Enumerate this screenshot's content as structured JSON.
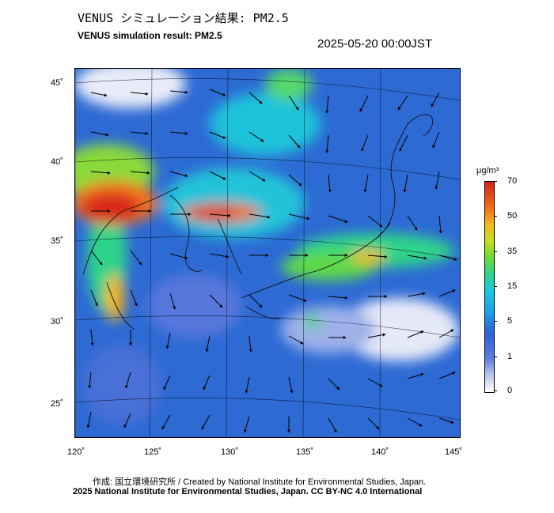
{
  "title_ja": "VENUS シミュレーション結果: PM2.5",
  "title_en": "VENUS simulation result: PM2.5",
  "timestamp": "2025-05-20 00:00JST",
  "map": {
    "lat_labels": [
      "45˚",
      "40˚",
      "35˚",
      "30˚",
      "25˚"
    ],
    "lon_labels": [
      "120˚",
      "125˚",
      "130˚",
      "135˚",
      "140˚",
      "145˚"
    ]
  },
  "colorbar": {
    "unit": "μg/m³",
    "ticks": [
      "70",
      "50",
      "35",
      "15",
      "5",
      "1",
      "0"
    ],
    "colors": [
      "#ffffff",
      "#b9c7f0",
      "#5b7de0",
      "#2a62d6",
      "#1aa0e8",
      "#19c8e0",
      "#2fd38a",
      "#6edb34",
      "#c9de20",
      "#f4b51d",
      "#f06a17",
      "#d8241a"
    ]
  },
  "credit": "作成: 国立環境研究所 / Created by National Institute for Environmental Studies, Japan.",
  "copyright": "2025 National Institute for Environmental Studies, Japan. CC BY-NC 4.0 International"
}
